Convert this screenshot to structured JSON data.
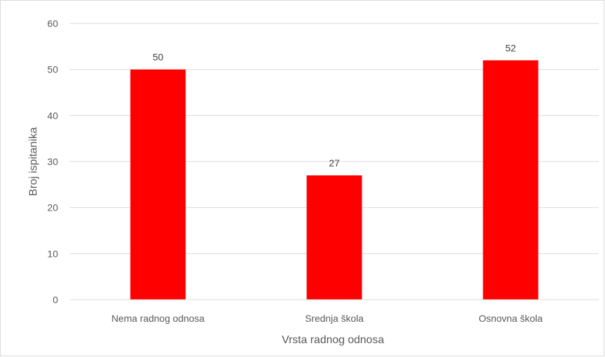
{
  "chart_data": {
    "type": "bar",
    "title": "",
    "xlabel": "Vrsta radnog odnosa",
    "ylabel": "Broj ispitanika",
    "categories": [
      "Nema radnog odnosa",
      "Srednja škola",
      "Osnovna škola"
    ],
    "values": [
      50,
      27,
      52
    ],
    "data_labels": [
      "50",
      "27",
      "52"
    ],
    "ylim": [
      0,
      60
    ],
    "yticks": [
      0,
      10,
      20,
      30,
      40,
      50,
      60
    ],
    "ytick_labels": [
      "0",
      "10",
      "20",
      "30",
      "40",
      "50",
      "60"
    ],
    "grid": true,
    "legend": "none",
    "colors": {
      "bar": "#ff0000",
      "grid": "#d9d9d9",
      "axis_line": "#d9d9d9"
    }
  }
}
